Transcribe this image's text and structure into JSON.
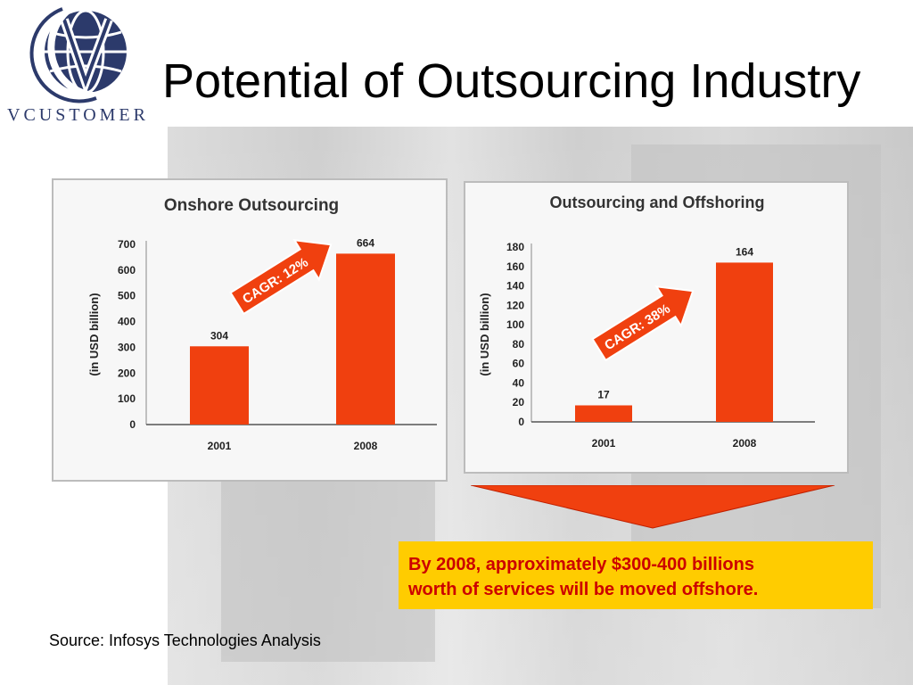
{
  "slide": {
    "title": "Potential of Outsourcing Industry",
    "logo_text": "VCUSTOMER",
    "callout_line1": "By 2008, approximately $300-400 billions",
    "callout_line2": "worth of services will be moved offshore.",
    "source": "Source: Infosys Technologies Analysis"
  },
  "colors": {
    "bar": "#f0400f",
    "callout_bg": "#ffcc00",
    "callout_text": "#cc0000",
    "logo_navy": "#2c3a6b"
  },
  "chart_data": [
    {
      "type": "bar",
      "title": "Onshore Outsourcing",
      "ylabel": "(in USD billion)",
      "xlabel": "",
      "categories": [
        "2001",
        "2008"
      ],
      "values": [
        304,
        664
      ],
      "ylim": [
        0,
        700
      ],
      "yticks": [
        0,
        100,
        200,
        300,
        400,
        500,
        600,
        700
      ],
      "grid": false,
      "annotation": "CAGR: 12%"
    },
    {
      "type": "bar",
      "title": "Outsourcing and Offshoring",
      "ylabel": "(in USD billion)",
      "xlabel": "",
      "categories": [
        "2001",
        "2008"
      ],
      "values": [
        17,
        164
      ],
      "ylim": [
        0,
        180
      ],
      "yticks": [
        0,
        20,
        40,
        60,
        80,
        100,
        120,
        140,
        160,
        180
      ],
      "grid": false,
      "annotation": "CAGR: 38%"
    }
  ]
}
